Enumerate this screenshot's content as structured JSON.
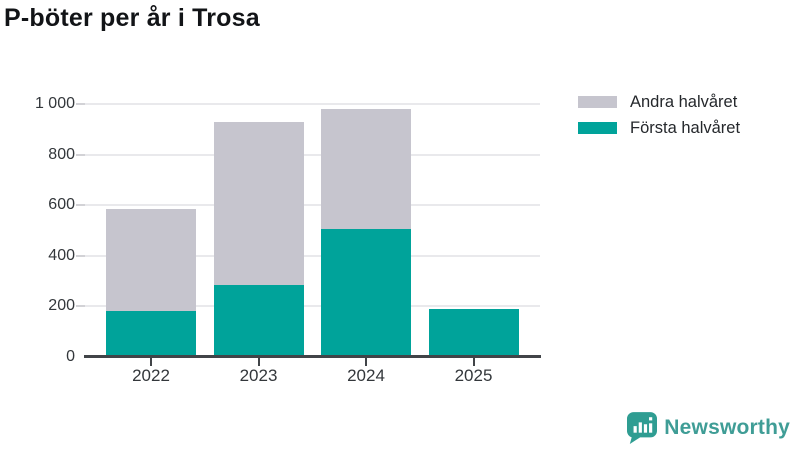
{
  "chart": {
    "title": "P-böter per år i Trosa"
  },
  "chart_data": {
    "type": "bar",
    "stacked": true,
    "title": "P-böter per år i Trosa",
    "categories": [
      "2022",
      "2023",
      "2024",
      "2025"
    ],
    "series": [
      {
        "name": "Första halvåret",
        "color": "#00a39a",
        "values": [
          180,
          285,
          505,
          190
        ]
      },
      {
        "name": "Andra halvåret",
        "color": "#c6c5ce",
        "values": [
          405,
          645,
          475,
          0
        ]
      }
    ],
    "totals": [
      585,
      930,
      980,
      190
    ],
    "xlabel": "",
    "ylabel": "",
    "ylim": [
      0,
      1000
    ],
    "yticks": [
      0,
      200,
      400,
      600,
      800,
      1000
    ],
    "ytick_labels": [
      "0",
      "200",
      "400",
      "600",
      "800",
      "1 000"
    ],
    "grid": "horizontal",
    "legend_position": "top-right",
    "legend_order": [
      "Andra halvåret",
      "Första halvåret"
    ]
  },
  "legend": {
    "items": [
      {
        "label": "Andra halvåret",
        "color": "#c6c5ce"
      },
      {
        "label": "Första halvåret",
        "color": "#00a39a"
      }
    ]
  },
  "brand": {
    "name": "Newsworthy",
    "icon": "newsworthy-speech-bubble-bar-chart-icon",
    "color": "#3f9d96"
  },
  "colors": {
    "first_half": "#00a39a",
    "second_half": "#c6c5ce",
    "axis_line": "#414448",
    "gridline": "#e9e9ec",
    "axis_text": "#33373b",
    "title_text": "#121417"
  }
}
